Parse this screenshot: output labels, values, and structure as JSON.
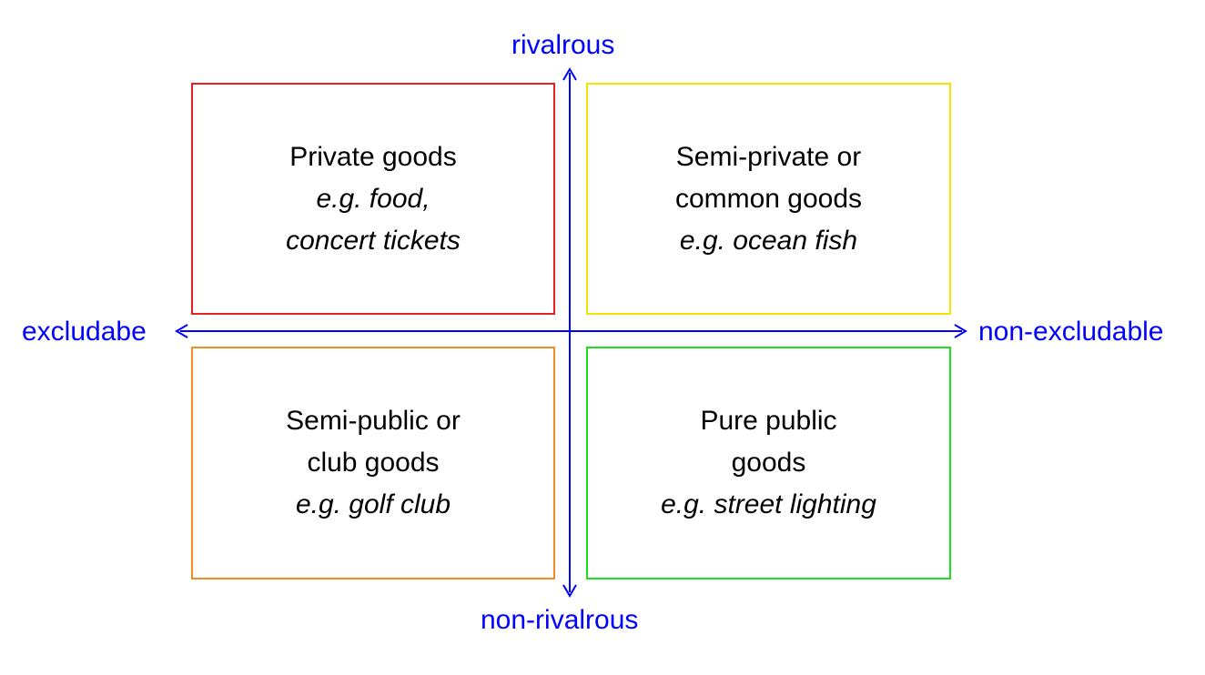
{
  "axes": {
    "top": "rivalrous",
    "bottom": "non-rivalrous",
    "left": "excludabe",
    "right": "non-excludable",
    "color": "#0000ff"
  },
  "quadrants": {
    "top_left": {
      "title_lines": [
        "Private goods"
      ],
      "example_lines": [
        "e.g. food,",
        "concert tickets"
      ],
      "border_color": "#e62020"
    },
    "top_right": {
      "title_lines": [
        "Semi-private or",
        "common goods"
      ],
      "example_lines": [
        "e.g. ocean fish"
      ],
      "border_color": "#f0e400"
    },
    "bottom_left": {
      "title_lines": [
        "Semi-public or",
        "club goods"
      ],
      "example_lines": [
        "e.g. golf club"
      ],
      "border_color": "#f28c1e"
    },
    "bottom_right": {
      "title_lines": [
        "Pure public",
        "goods"
      ],
      "example_lines": [
        "e.g. street lighting"
      ],
      "border_color": "#1fe01f"
    }
  }
}
